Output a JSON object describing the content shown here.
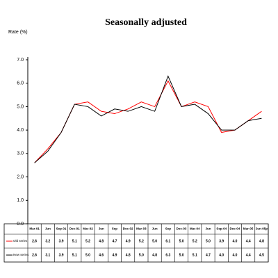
{
  "chart_data": {
    "type": "line",
    "title": "Seasonally adjusted",
    "y_label": "Rate (%)",
    "categories": [
      "Mar-01",
      "Jun",
      "Sep-01",
      "Dec-01",
      "Mar-02",
      "Jun",
      "Sep",
      "Dec-02",
      "Mar-03",
      "Jun",
      "Sep",
      "Dec-03",
      "Mar-04",
      "Jun",
      "Sep-04",
      "Dec-04",
      "Mar-05",
      "Jun-05p"
    ],
    "series": [
      {
        "name": "Old series",
        "color": "#ff0000",
        "values": [
          2.6,
          3.2,
          3.9,
          5.1,
          5.2,
          4.8,
          4.7,
          4.9,
          5.2,
          5.0,
          6.1,
          5.0,
          5.2,
          5.0,
          3.9,
          4.0,
          4.4,
          4.8
        ],
        "value_labels": [
          "2.6",
          "3.2",
          "3.9",
          "5.1",
          "5.2",
          "4.8",
          "4.7",
          "4.9",
          "5.2",
          "5.0",
          "6.1",
          "5.0",
          "5.2",
          "5.0",
          "3.9",
          "4.0",
          "4.4",
          "4.8"
        ]
      },
      {
        "name": "New series",
        "color": "#000000",
        "values": [
          2.6,
          3.1,
          3.9,
          5.1,
          5.0,
          4.6,
          4.9,
          4.8,
          5.0,
          4.8,
          6.3,
          5.0,
          5.1,
          4.7,
          4.0,
          4.0,
          4.4,
          4.5
        ],
        "value_labels": [
          "2.6",
          "3.1",
          "3.9",
          "5.1",
          "5.0",
          "4.6",
          "4.9",
          "4.8",
          "5.0",
          "4.8",
          "6.3",
          "5.0",
          "5.1",
          "4.7",
          "4.0",
          "4.0",
          "4.4",
          "4.5"
        ]
      }
    ],
    "ylim": [
      0,
      7
    ],
    "yticks": [
      {
        "value": 0,
        "label": "0.0"
      },
      {
        "value": 1,
        "label": "1.0"
      },
      {
        "value": 2,
        "label": "2.0"
      },
      {
        "value": 3,
        "label": "3.0"
      },
      {
        "value": 4,
        "label": "4.0"
      },
      {
        "value": 5,
        "label": "5.0"
      },
      {
        "value": 6,
        "label": "6.0"
      },
      {
        "value": 7,
        "label": "7.0"
      }
    ],
    "grid": false
  }
}
